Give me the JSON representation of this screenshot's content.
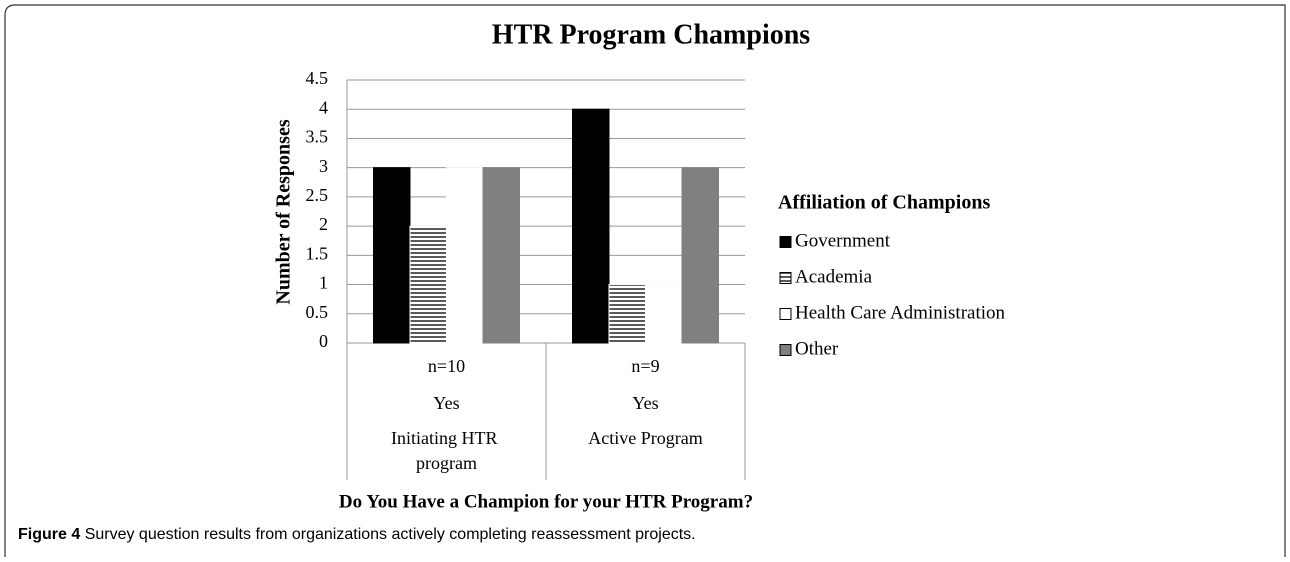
{
  "chart_data": {
    "type": "bar",
    "title": "HTR Program Champions",
    "x_label": "Do You Have a Champion for your HTR Program?",
    "y_label": "Number of Responses",
    "categories": [
      [
        "n=10",
        "Yes",
        "Initiating HTR program"
      ],
      [
        "n=9",
        "Yes",
        "Active Program"
      ]
    ],
    "series": [
      {
        "name": "Government",
        "color": "#000000",
        "values": [
          3,
          4
        ]
      },
      {
        "name": "Academia",
        "color": "#ffffff",
        "pattern": "horizontal-lines",
        "values": [
          2,
          1
        ]
      },
      {
        "name": "Health Care Administration",
        "color": "#ffffff",
        "values": [
          3,
          1
        ]
      },
      {
        "name": "Other",
        "color": "#808080",
        "values": [
          3,
          3
        ]
      }
    ],
    "legend_title": "Affiliation of Champions",
    "legend": "right",
    "ylim": [
      0,
      4.5
    ],
    "yticks": [
      0,
      0.5,
      1,
      1.5,
      2,
      2.5,
      3,
      3.5,
      4,
      4.5
    ],
    "grid": true
  },
  "caption": {
    "label": "Figure 4",
    "text": "Survey question results from organizations actively completing reassessment projects."
  }
}
